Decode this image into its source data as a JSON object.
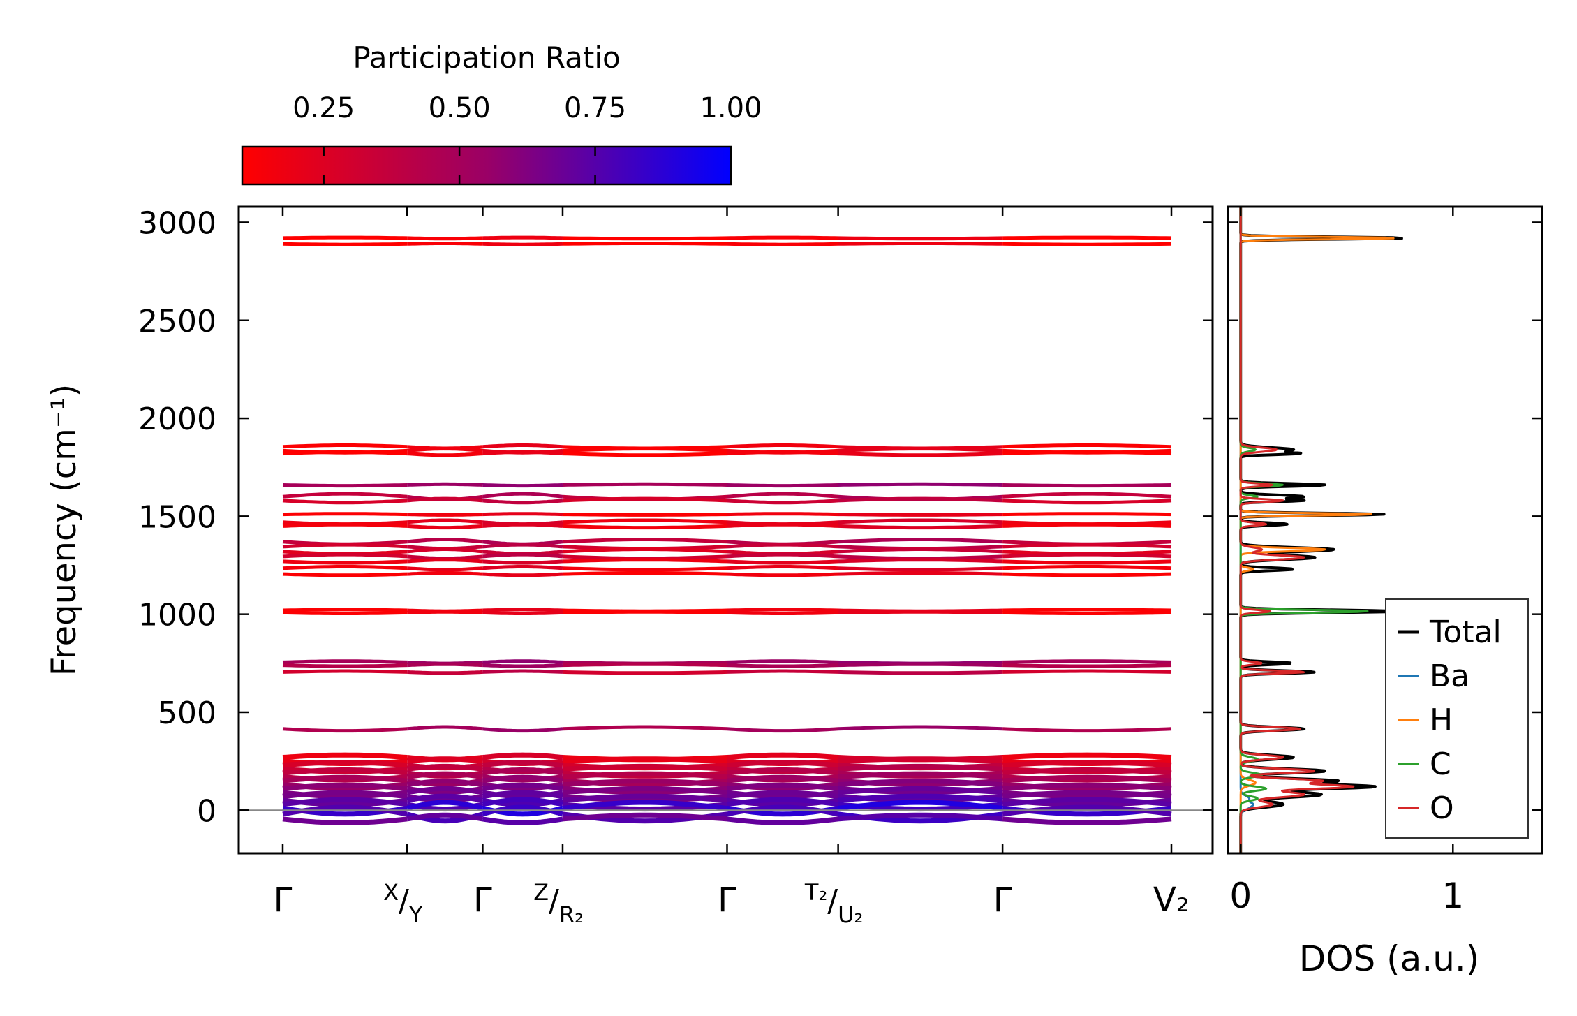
{
  "colors": {
    "low": "#ff0000",
    "mid": "#9a0066",
    "high": "#0000ff"
  },
  "chart_data": [
    {
      "type": "phonon_band_structure",
      "colorbar": {
        "title": "Participation Ratio",
        "range": [
          0.1,
          1.0
        ],
        "ticks": [
          0.25,
          0.5,
          0.75,
          1.0
        ],
        "tick_labels": [
          "0.25",
          "0.50",
          "0.75",
          "1.00"
        ],
        "colors": [
          "#ff0000",
          "#0000ff"
        ]
      },
      "ylabel": "Frequency (cm⁻¹)",
      "ylim": [
        -220,
        3080
      ],
      "yticks": [
        0,
        500,
        1000,
        1500,
        2000,
        2500,
        3000
      ],
      "ytick_labels": [
        "0",
        "500",
        "1000",
        "1500",
        "2000",
        "2500",
        "3000"
      ],
      "path_positions": [
        0,
        2.8,
        4.5,
        6.3,
        10,
        12.5,
        16.2,
        20
      ],
      "path_labels": [
        {
          "main": "Γ",
          "sup": "",
          "sub": "",
          "kind": "main"
        },
        {
          "main": "/",
          "sup": "X",
          "sub": "Y",
          "kind": "split"
        },
        {
          "main": "Γ",
          "sup": "",
          "sub": "",
          "kind": "main"
        },
        {
          "main": "/",
          "sup": "Z",
          "sub": "R₂",
          "kind": "split"
        },
        {
          "main": "Γ",
          "sup": "",
          "sub": "",
          "kind": "main"
        },
        {
          "main": "/",
          "sup": "T₂",
          "sub": "U₂",
          "kind": "split"
        },
        {
          "main": "Γ",
          "sup": "",
          "sub": "",
          "kind": "main"
        },
        {
          "main": "V₂",
          "sup": "",
          "sub": "",
          "kind": "main"
        }
      ],
      "bands": [
        {
          "freq": 2920,
          "pr": 0.12,
          "amp": 3
        },
        {
          "freq": 2890,
          "pr": 0.12,
          "amp": 3
        },
        {
          "freq": 1855,
          "pr": 0.15,
          "amp": 8
        },
        {
          "freq": 1835,
          "pr": 0.15,
          "amp": 10
        },
        {
          "freq": 1820,
          "pr": 0.14,
          "amp": 8
        },
        {
          "freq": 1660,
          "pr": 0.45,
          "amp": 4
        },
        {
          "freq": 1600,
          "pr": 0.35,
          "amp": 15
        },
        {
          "freq": 1580,
          "pr": 0.28,
          "amp": 10
        },
        {
          "freq": 1510,
          "pr": 0.15,
          "amp": 3
        },
        {
          "freq": 1470,
          "pr": 0.2,
          "amp": 10
        },
        {
          "freq": 1450,
          "pr": 0.18,
          "amp": 8
        },
        {
          "freq": 1370,
          "pr": 0.35,
          "amp": 12
        },
        {
          "freq": 1345,
          "pr": 0.3,
          "amp": 10
        },
        {
          "freq": 1320,
          "pr": 0.25,
          "amp": 12
        },
        {
          "freq": 1295,
          "pr": 0.3,
          "amp": 10
        },
        {
          "freq": 1270,
          "pr": 0.2,
          "amp": 8
        },
        {
          "freq": 1235,
          "pr": 0.18,
          "amp": 8
        },
        {
          "freq": 1205,
          "pr": 0.15,
          "amp": 6
        },
        {
          "freq": 1020,
          "pr": 0.15,
          "amp": 4
        },
        {
          "freq": 1008,
          "pr": 0.15,
          "amp": 4
        },
        {
          "freq": 755,
          "pr": 0.45,
          "amp": 6
        },
        {
          "freq": 740,
          "pr": 0.4,
          "amp": 5
        },
        {
          "freq": 705,
          "pr": 0.3,
          "amp": 5
        },
        {
          "freq": 415,
          "pr": 0.42,
          "amp": 10
        },
        {
          "freq": 270,
          "pr": 0.2,
          "amp": 12
        },
        {
          "freq": 250,
          "pr": 0.22,
          "amp": 12
        },
        {
          "freq": 230,
          "pr": 0.28,
          "amp": 14
        },
        {
          "freq": 210,
          "pr": 0.32,
          "amp": 14
        },
        {
          "freq": 190,
          "pr": 0.36,
          "amp": 16
        },
        {
          "freq": 170,
          "pr": 0.4,
          "amp": 16
        },
        {
          "freq": 150,
          "pr": 0.45,
          "amp": 18
        },
        {
          "freq": 130,
          "pr": 0.5,
          "amp": 18
        },
        {
          "freq": 110,
          "pr": 0.55,
          "amp": 18
        },
        {
          "freq": 90,
          "pr": 0.6,
          "amp": 20
        },
        {
          "freq": 70,
          "pr": 0.62,
          "amp": 20
        },
        {
          "freq": 50,
          "pr": 0.68,
          "amp": 22
        },
        {
          "freq": 30,
          "pr": 0.72,
          "amp": 24
        },
        {
          "freq": 10,
          "pr": 0.85,
          "amp": 30
        },
        {
          "freq": -20,
          "pr": 0.75,
          "amp": 35
        },
        {
          "freq": -45,
          "pr": 0.65,
          "amp": 20
        }
      ],
      "zero_line": 0
    },
    {
      "type": "line",
      "orientation": "horizontal-density",
      "xlabel": "DOS (a.u.)",
      "xlim": [
        -0.06,
        1.42
      ],
      "xticks": [
        0,
        1
      ],
      "xtick_labels": [
        "0",
        "1"
      ],
      "ylim": [
        -220,
        3080
      ],
      "legend_position": "lower-right",
      "series": [
        {
          "name": "Total",
          "color": "#000000",
          "peaks": [
            [
              2920,
              0.78,
              8
            ],
            [
              1840,
              0.25,
              15
            ],
            [
              1820,
              0.24,
              8
            ],
            [
              1660,
              0.4,
              10
            ],
            [
              1600,
              0.3,
              12
            ],
            [
              1580,
              0.28,
              8
            ],
            [
              1510,
              0.68,
              8
            ],
            [
              1460,
              0.22,
              10
            ],
            [
              1330,
              0.44,
              15
            ],
            [
              1290,
              0.35,
              15
            ],
            [
              1230,
              0.25,
              10
            ],
            [
              1015,
              0.75,
              10
            ],
            [
              750,
              0.24,
              10
            ],
            [
              705,
              0.35,
              10
            ],
            [
              415,
              0.3,
              12
            ],
            [
              270,
              0.25,
              15
            ],
            [
              200,
              0.4,
              15
            ],
            [
              150,
              0.45,
              15
            ],
            [
              120,
              0.62,
              15
            ],
            [
              80,
              0.38,
              20
            ],
            [
              30,
              0.2,
              20
            ]
          ]
        },
        {
          "name": "Ba",
          "color": "#1f77b4",
          "peaks": [
            [
              60,
              0.04,
              20
            ],
            [
              30,
              0.05,
              15
            ],
            [
              10,
              0.03,
              15
            ]
          ]
        },
        {
          "name": "H",
          "color": "#ff7f0e",
          "peaks": [
            [
              2920,
              0.74,
              8
            ],
            [
              1510,
              0.62,
              8
            ],
            [
              1330,
              0.4,
              12
            ],
            [
              1230,
              0.06,
              10
            ],
            [
              140,
              0.07,
              20
            ]
          ]
        },
        {
          "name": "C",
          "color": "#2ca02c",
          "peaks": [
            [
              1840,
              0.07,
              12
            ],
            [
              1660,
              0.2,
              10
            ],
            [
              1600,
              0.08,
              10
            ],
            [
              1015,
              0.6,
              10
            ],
            [
              260,
              0.08,
              15
            ],
            [
              180,
              0.1,
              15
            ],
            [
              110,
              0.12,
              15
            ],
            [
              60,
              0.08,
              15
            ]
          ]
        },
        {
          "name": "O",
          "color": "#d62728",
          "peaks": [
            [
              1840,
              0.17,
              15
            ],
            [
              1660,
              0.15,
              10
            ],
            [
              1580,
              0.2,
              10
            ],
            [
              1460,
              0.12,
              10
            ],
            [
              1330,
              0.1,
              15
            ],
            [
              1290,
              0.3,
              15
            ],
            [
              1015,
              0.14,
              10
            ],
            [
              750,
              0.1,
              10
            ],
            [
              705,
              0.3,
              10
            ],
            [
              415,
              0.28,
              12
            ],
            [
              270,
              0.2,
              15
            ],
            [
              200,
              0.35,
              15
            ],
            [
              150,
              0.38,
              15
            ],
            [
              120,
              0.52,
              15
            ],
            [
              80,
              0.3,
              20
            ],
            [
              30,
              0.15,
              20
            ]
          ]
        }
      ]
    }
  ]
}
